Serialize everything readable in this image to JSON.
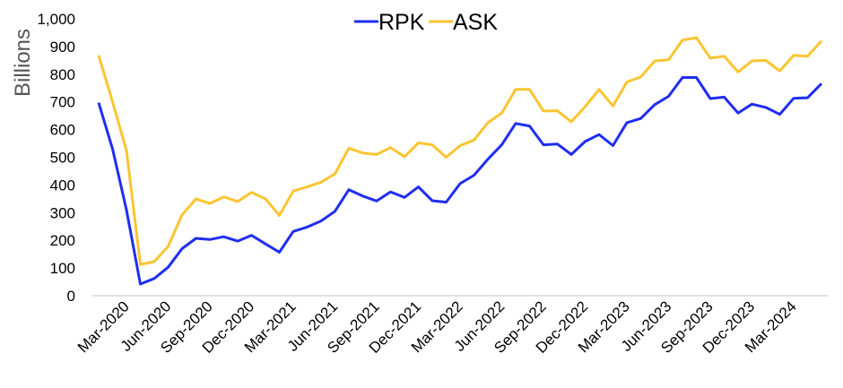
{
  "chart_data": {
    "type": "line",
    "title": "",
    "xlabel": "",
    "ylabel": "Billions",
    "ylim": [
      0,
      1000
    ],
    "yticks": [
      0,
      100,
      200,
      300,
      400,
      500,
      600,
      700,
      800,
      900,
      1000
    ],
    "ytick_labels": [
      "0",
      "100",
      "200",
      "300",
      "400",
      "500",
      "600",
      "700",
      "800",
      "900",
      "1,000"
    ],
    "grid": false,
    "legend_position": "top-center",
    "x": [
      "Jan-2020",
      "Feb-2020",
      "Mar-2020",
      "Apr-2020",
      "May-2020",
      "Jun-2020",
      "Jul-2020",
      "Aug-2020",
      "Sep-2020",
      "Oct-2020",
      "Nov-2020",
      "Dec-2020",
      "Jan-2021",
      "Feb-2021",
      "Mar-2021",
      "Apr-2021",
      "May-2021",
      "Jun-2021",
      "Jul-2021",
      "Aug-2021",
      "Sep-2021",
      "Oct-2021",
      "Nov-2021",
      "Dec-2021",
      "Jan-2022",
      "Feb-2022",
      "Mar-2022",
      "Apr-2022",
      "May-2022",
      "Jun-2022",
      "Jul-2022",
      "Aug-2022",
      "Sep-2022",
      "Oct-2022",
      "Nov-2022",
      "Dec-2022",
      "Jan-2023",
      "Feb-2023",
      "Mar-2023",
      "Apr-2023",
      "May-2023",
      "Jun-2023",
      "Jul-2023",
      "Aug-2023",
      "Sep-2023",
      "Oct-2023",
      "Nov-2023",
      "Dec-2023",
      "Jan-2024",
      "Feb-2024",
      "Mar-2024",
      "Apr-2024",
      "May-2024"
    ],
    "xtick_labels": [
      "Mar-2020",
      "Jun-2020",
      "Sep-2020",
      "Dec-2020",
      "Mar-2021",
      "Jun-2021",
      "Sep-2021",
      "Dec-2021",
      "Mar-2022",
      "Jun-2022",
      "Sep-2022",
      "Dec-2022",
      "Mar-2023",
      "Jun-2023",
      "Sep-2023",
      "Dec-2023",
      "Mar-2024"
    ],
    "series": [
      {
        "name": "RPK",
        "color": "#1f2ef0",
        "values": [
          697,
          530,
          310,
          42,
          62,
          103,
          170,
          207,
          203,
          213,
          197,
          218,
          187,
          157,
          232,
          248,
          270,
          305,
          383,
          360,
          342,
          375,
          355,
          393,
          343,
          338,
          405,
          435,
          493,
          545,
          622,
          613,
          545,
          548,
          510,
          557,
          582,
          542,
          625,
          640,
          690,
          720,
          788,
          788,
          712,
          717,
          660,
          692,
          680,
          655,
          713,
          715,
          766
        ]
      },
      {
        "name": "ASK",
        "color": "#fbc531",
        "values": [
          868,
          700,
          525,
          113,
          123,
          178,
          292,
          350,
          333,
          357,
          340,
          373,
          350,
          290,
          378,
          393,
          410,
          440,
          533,
          515,
          510,
          535,
          502,
          552,
          545,
          500,
          542,
          562,
          625,
          660,
          745,
          745,
          667,
          668,
          628,
          683,
          745,
          685,
          772,
          790,
          848,
          852,
          923,
          932,
          858,
          865,
          808,
          848,
          850,
          812,
          868,
          865,
          920
        ]
      }
    ]
  },
  "legend": {
    "items": [
      {
        "label": "RPK",
        "color": "#1f2ef0"
      },
      {
        "label": "ASK",
        "color": "#fbc531"
      }
    ]
  },
  "axis": {
    "y_title": "Billions",
    "baseline_color": "#e0e0e0"
  }
}
